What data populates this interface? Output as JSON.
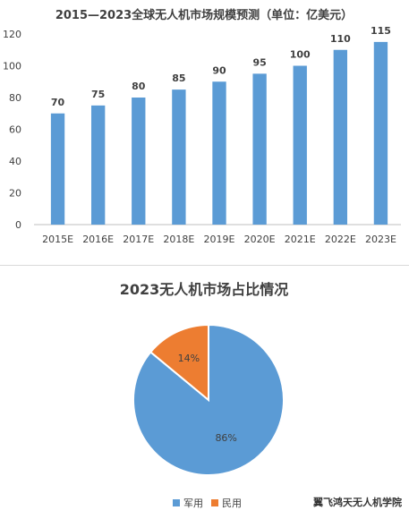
{
  "chart_data": [
    {
      "type": "bar",
      "title": "2015—2023全球无人机市场规模预测（单位：亿美元）",
      "categories": [
        "2015E",
        "2016E",
        "2017E",
        "2018E",
        "2019E",
        "2020E",
        "2021E",
        "2022E",
        "2023E"
      ],
      "values": [
        70,
        75,
        80,
        85,
        90,
        95,
        100,
        110,
        115
      ],
      "ylim": [
        0,
        120
      ],
      "yticks": [
        0,
        20,
        40,
        60,
        80,
        100,
        120
      ],
      "grid": false,
      "color": "#5b9bd5"
    },
    {
      "type": "pie",
      "title": "2023无人机市场占比情况",
      "labels": [
        "军用",
        "民用"
      ],
      "values": [
        86,
        14
      ],
      "value_labels": [
        "86%",
        "14%"
      ],
      "colors": [
        "#5b9bd5",
        "#ed7d31"
      ],
      "legend": "bottom-center"
    }
  ],
  "watermark": "翼飞鸿天无人机学院"
}
